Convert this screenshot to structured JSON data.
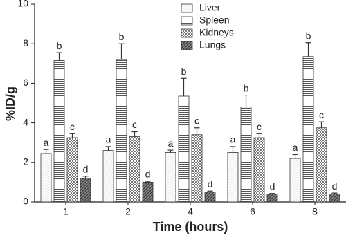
{
  "chart_data": {
    "type": "bar",
    "x_label": "Time (hours)",
    "y_label": "%ID/g",
    "categories": [
      "1",
      "2",
      "4",
      "6",
      "8"
    ],
    "series": [
      {
        "name": "Liver",
        "values": [
          2.45,
          2.6,
          2.5,
          2.5,
          2.2
        ],
        "errors": [
          0.2,
          0.2,
          0.12,
          0.3,
          0.2
        ],
        "labels": [
          "a",
          "a",
          "a",
          "a",
          "a"
        ]
      },
      {
        "name": "Spleen",
        "values": [
          7.15,
          7.2,
          5.35,
          4.8,
          7.35
        ],
        "errors": [
          0.4,
          0.8,
          0.9,
          0.6,
          0.7
        ],
        "labels": [
          "b",
          "b",
          "b",
          "b",
          "b"
        ]
      },
      {
        "name": "Kidneys",
        "values": [
          3.25,
          3.3,
          3.4,
          3.25,
          3.75
        ],
        "errors": [
          0.2,
          0.25,
          0.35,
          0.2,
          0.3
        ],
        "labels": [
          "c",
          "c",
          "c",
          "c",
          "c"
        ]
      },
      {
        "name": "Lungs",
        "values": [
          1.2,
          1.0,
          0.5,
          0.4,
          0.4
        ],
        "errors": [
          0.1,
          0.05,
          0.05,
          0.03,
          0.05
        ],
        "labels": [
          "d",
          "d",
          "d",
          "d",
          "d"
        ]
      }
    ],
    "ylim": [
      0,
      10
    ],
    "yticks": [
      0,
      2,
      4,
      6,
      8,
      10
    ]
  }
}
